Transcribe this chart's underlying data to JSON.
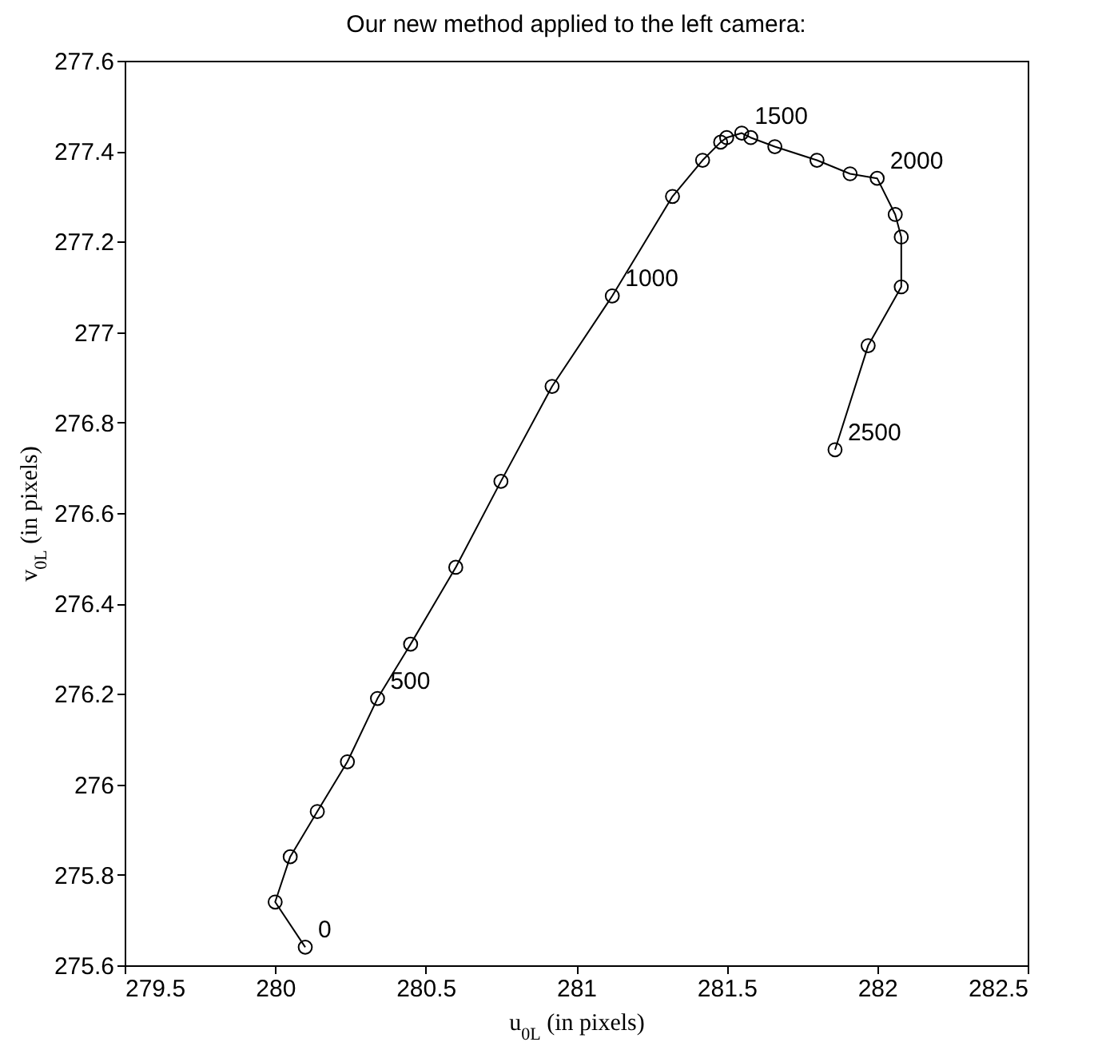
{
  "chart_data": {
    "type": "line",
    "title": "Our new method applied to the left camera:",
    "xlabel": "u$_{0L}$ (in pixels)",
    "ylabel": "v$_{0L}$ (in pixels)",
    "x": [
      280.1,
      280.0,
      280.05,
      280.14,
      280.24,
      280.34,
      280.45,
      280.6,
      280.75,
      280.92,
      281.12,
      281.32,
      281.42,
      281.48,
      281.5,
      281.55,
      281.58,
      281.66,
      281.8,
      281.91,
      282.0,
      282.06,
      282.08,
      282.08,
      281.97,
      281.86
    ],
    "series": [
      {
        "color": "#000000",
        "values": [
          275.64,
          275.74,
          275.84,
          275.94,
          276.05,
          276.19,
          276.31,
          276.48,
          276.67,
          276.88,
          277.08,
          277.3,
          277.38,
          277.42,
          277.43,
          277.44,
          277.43,
          277.41,
          277.38,
          277.35,
          277.34,
          277.26,
          277.21,
          277.1,
          276.97,
          276.74
        ]
      }
    ],
    "xlim": [
      279.5,
      282.5
    ],
    "xticks": [
      279.5,
      280,
      280.5,
      281,
      281.5,
      282,
      282.5
    ],
    "ylim": [
      275.6,
      277.6
    ],
    "yticks": [
      275.6,
      275.8,
      276,
      276.2,
      276.4,
      276.6,
      276.8,
      277,
      277.2,
      277.4,
      277.6
    ],
    "marker": "circle",
    "line_style": "solid",
    "grid": false,
    "annotations": [
      {
        "text": "0",
        "x": 280.1,
        "y": 275.64
      },
      {
        "text": "500",
        "x": 280.34,
        "y": 276.19
      },
      {
        "text": "1000",
        "x": 281.12,
        "y": 277.08
      },
      {
        "text": "1500",
        "x": 281.55,
        "y": 277.44
      },
      {
        "text": "2000",
        "x": 282.0,
        "y": 277.34
      },
      {
        "text": "2500",
        "x": 281.86,
        "y": 276.74
      }
    ]
  }
}
